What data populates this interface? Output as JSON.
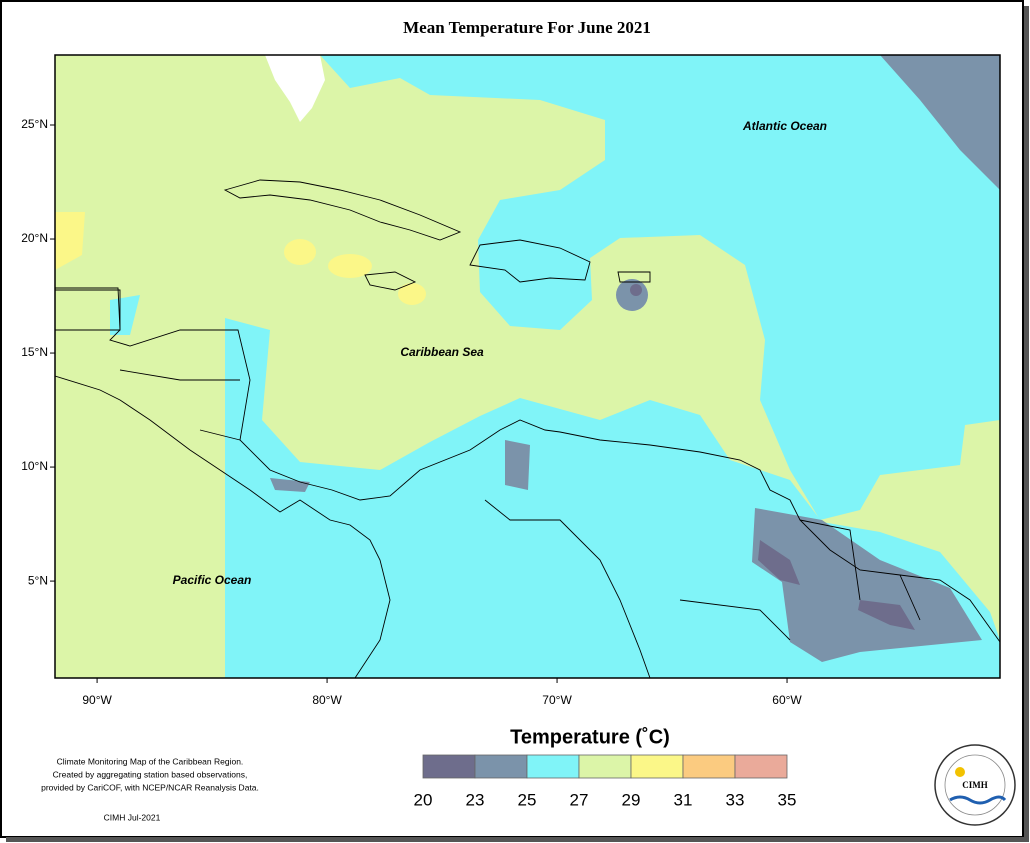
{
  "title": "Mean Temperature For June 2021",
  "map": {
    "lon_range": [
      -91.83,
      -50.74
    ],
    "lat_range": [
      0.75,
      28.07
    ],
    "lat_ticks": [
      {
        "value": 25,
        "label": "25°N"
      },
      {
        "value": 20,
        "label": "20°N"
      },
      {
        "value": 15,
        "label": "15°N"
      },
      {
        "value": 10,
        "label": "10°N"
      },
      {
        "value": 5,
        "label": "5°N"
      }
    ],
    "lon_ticks": [
      {
        "value": -90,
        "label": "90°W"
      },
      {
        "value": -80,
        "label": "80°W"
      },
      {
        "value": -70,
        "label": "70°W"
      },
      {
        "value": -60,
        "label": "60°W"
      }
    ],
    "labels": [
      "Atlantic Ocean",
      "Caribbean Sea",
      "Pacific Ocean"
    ]
  },
  "legend": {
    "title": "Temperature (˚C)",
    "bins": [
      20,
      23,
      25,
      27,
      29,
      31,
      33,
      35
    ],
    "colors": [
      "#6e6d8c",
      "#7b93aa",
      "#80f4f8",
      "#dcf5a8",
      "#fbf788",
      "#fbcb80",
      "#eaaa9a"
    ]
  },
  "footnote": {
    "lines": [
      "Climate Monitoring Map of the Caribbean Region.",
      "Created by aggregating station based observations,",
      "provided by CariCOF, with NCEP/NCAR Reanalysis Data."
    ],
    "credit": "CIMH Jul-2021"
  },
  "logo": {
    "text": "CIMH"
  }
}
